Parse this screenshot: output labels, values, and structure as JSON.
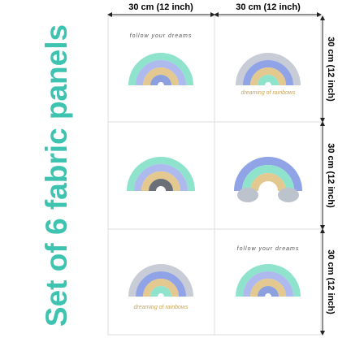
{
  "title": "Set of 6 fabric panels",
  "dimensions": {
    "top": [
      "30 cm (12 inch)",
      "30 cm (12 inch)"
    ],
    "right": [
      "30 cm (12 inch)",
      "30 cm (12 inch)",
      "30 cm (12 inch)"
    ]
  },
  "captions": [
    "follow your dreams",
    "dreaming of rainbows",
    "dreaming of rainbows",
    "follow your dreams"
  ]
}
